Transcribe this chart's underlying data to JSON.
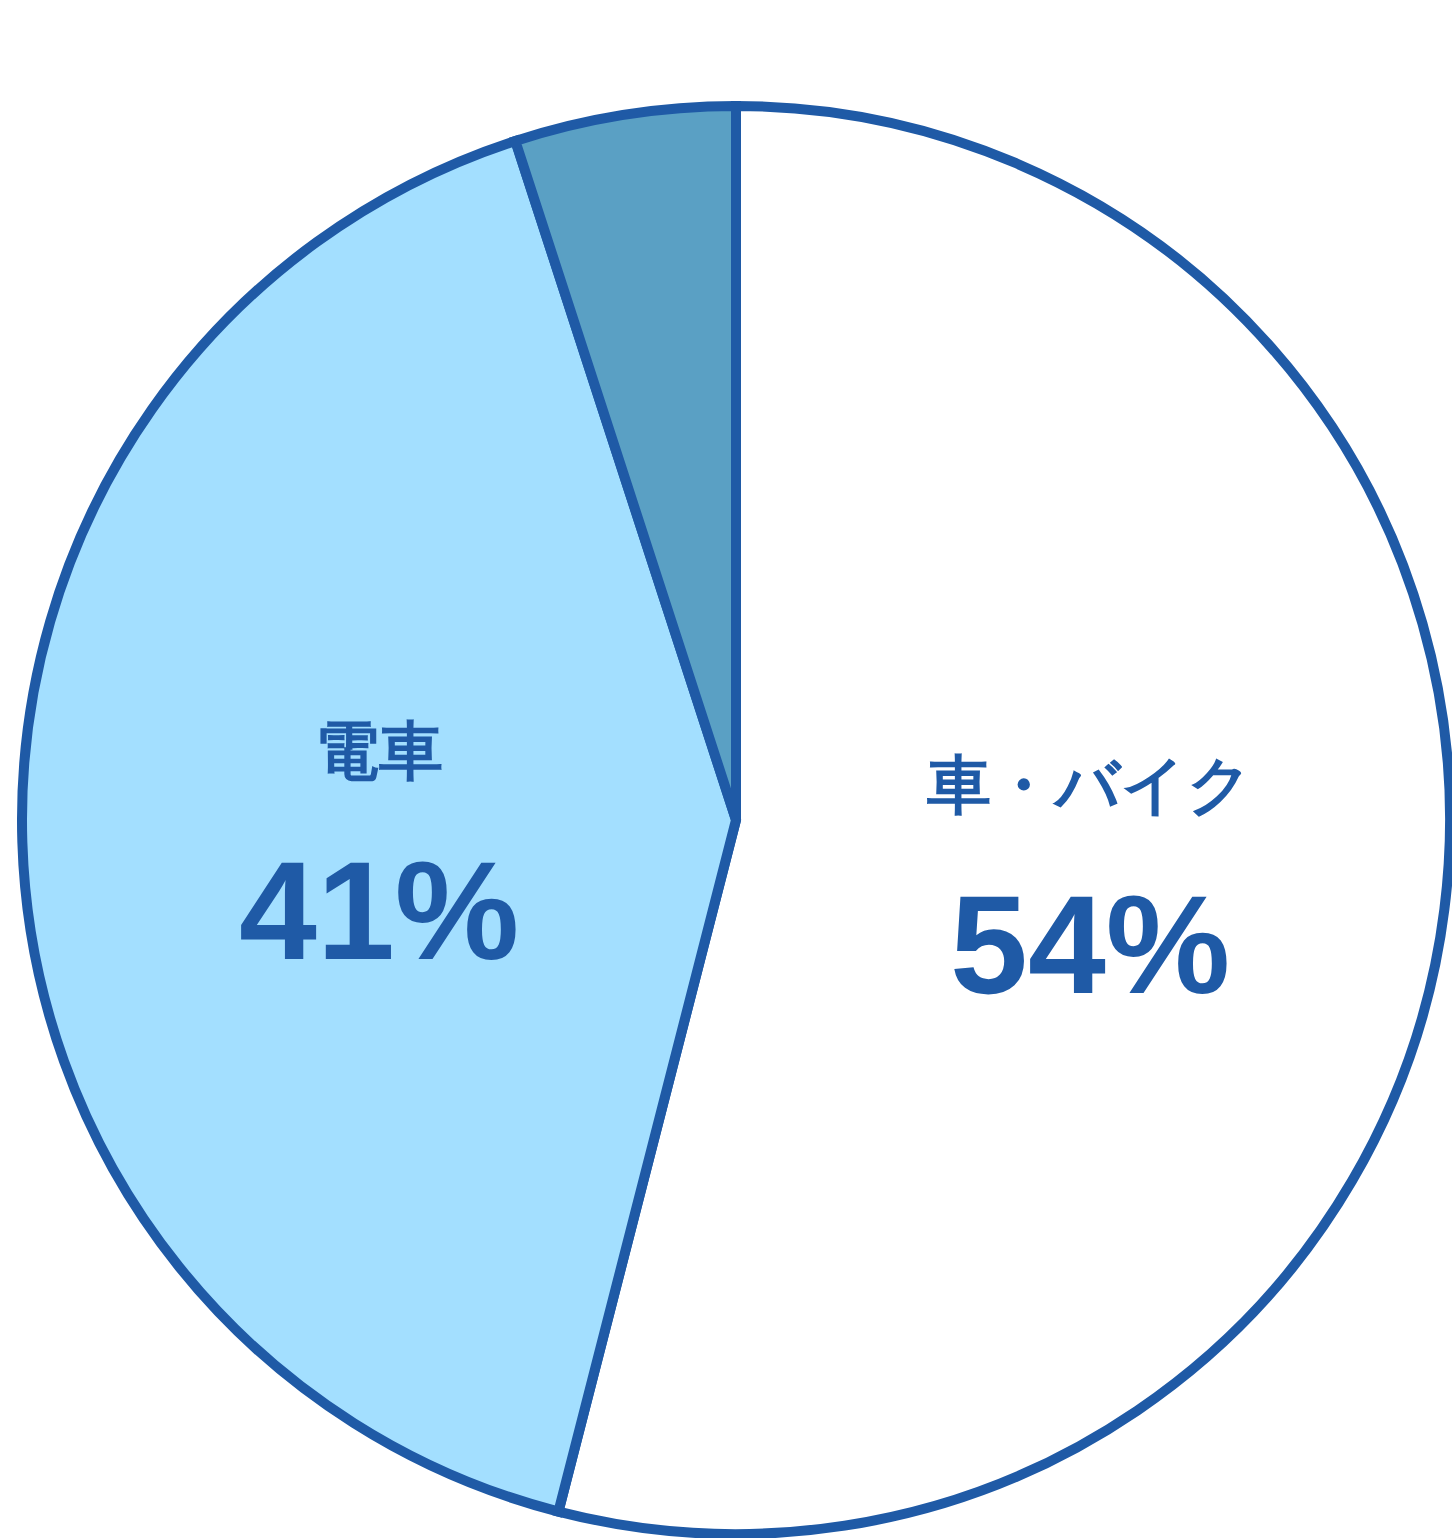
{
  "chart_data": {
    "type": "pie",
    "categories": [
      "車・バイク",
      "電車",
      null
    ],
    "values": [
      54,
      41,
      5
    ],
    "value_labels": [
      "54%",
      "41%",
      null
    ],
    "colors": [
      "#ffffff",
      "#a3dfff",
      "#5aa0c4"
    ]
  }
}
